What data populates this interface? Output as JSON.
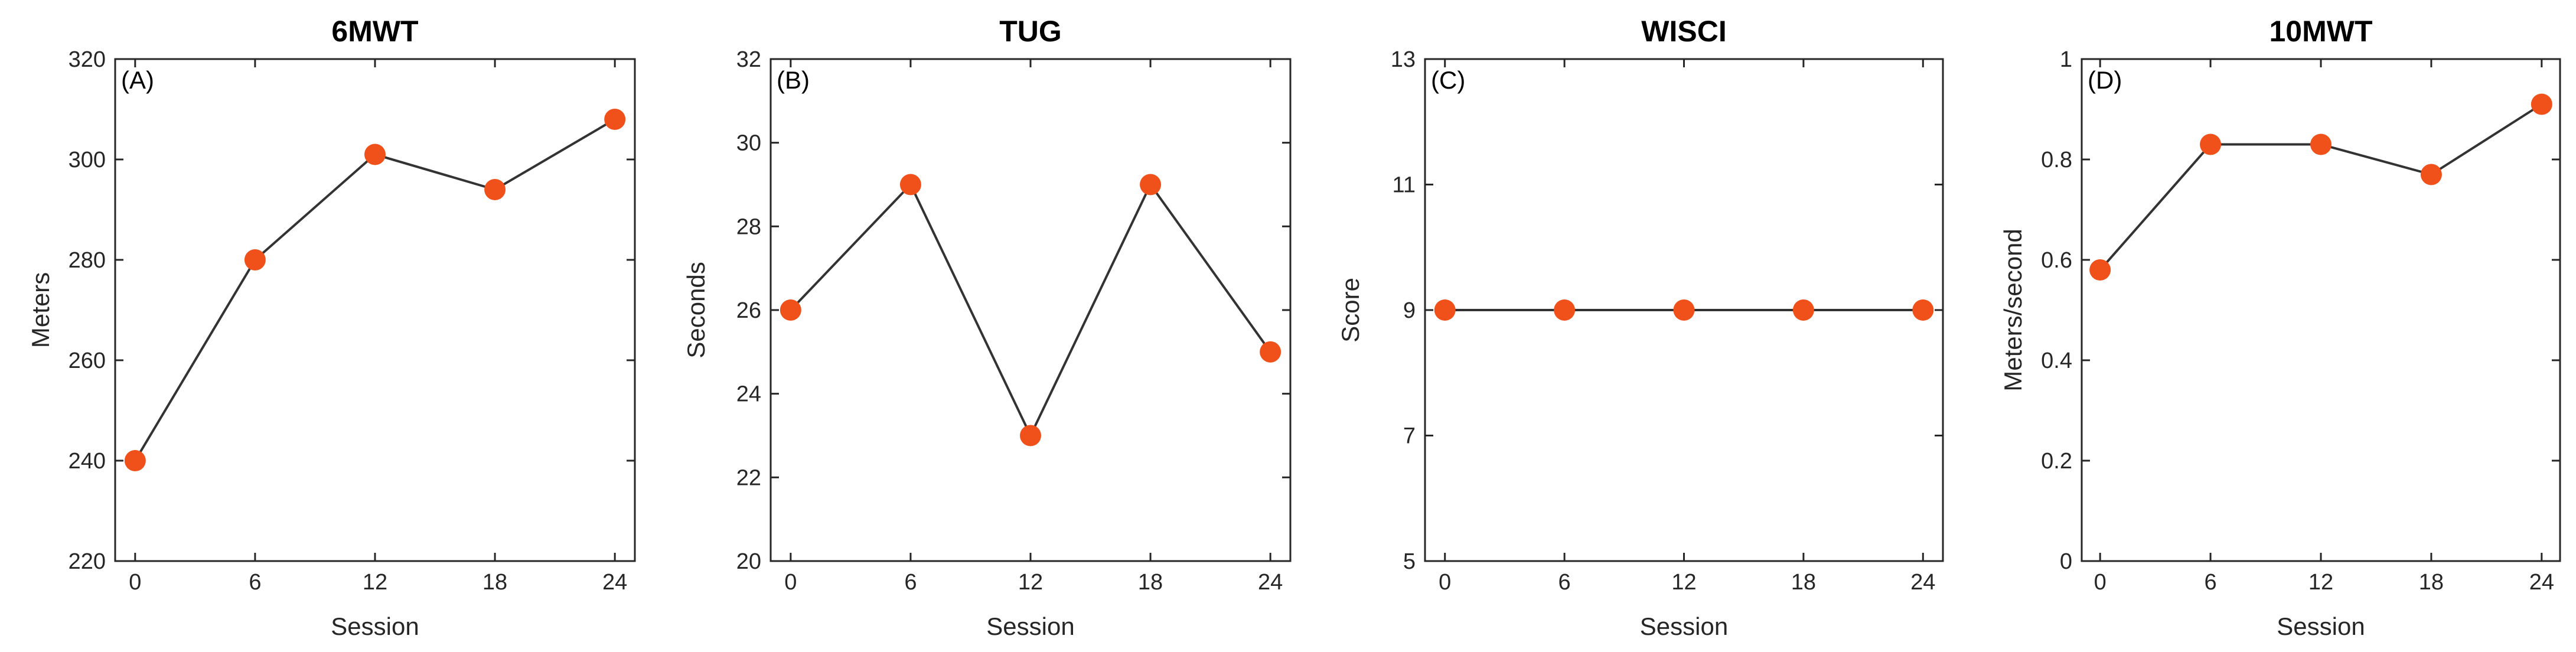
{
  "chart_data": [
    {
      "type": "line",
      "panel_label": "(A)",
      "title": "6MWT",
      "xlabel": "Session",
      "ylabel": "Meters",
      "x": [
        0,
        6,
        12,
        18,
        24
      ],
      "values": [
        240,
        280,
        301,
        294,
        308
      ],
      "xticks": [
        0,
        6,
        12,
        18,
        24
      ],
      "yticks": [
        220,
        240,
        260,
        280,
        300,
        320
      ],
      "xlim": [
        -1,
        25
      ],
      "ylim": [
        220,
        320
      ],
      "marker_color": "#F0501A",
      "line_color": "#333333"
    },
    {
      "type": "line",
      "panel_label": "(B)",
      "title": "TUG",
      "xlabel": "Session",
      "ylabel": "Seconds",
      "x": [
        0,
        6,
        12,
        18,
        24
      ],
      "values": [
        26,
        29,
        23,
        29,
        25
      ],
      "xticks": [
        0,
        6,
        12,
        18,
        24
      ],
      "yticks": [
        20,
        22,
        24,
        26,
        28,
        30,
        32
      ],
      "xlim": [
        -1,
        25
      ],
      "ylim": [
        20,
        32
      ],
      "marker_color": "#F0501A",
      "line_color": "#333333"
    },
    {
      "type": "line",
      "panel_label": "(C)",
      "title": "WISCI",
      "xlabel": "Session",
      "ylabel": "Score",
      "x": [
        0,
        6,
        12,
        18,
        24
      ],
      "values": [
        9,
        9,
        9,
        9,
        9
      ],
      "xticks": [
        0,
        6,
        12,
        18,
        24
      ],
      "yticks": [
        5,
        7,
        9,
        11,
        13
      ],
      "xlim": [
        -1,
        25
      ],
      "ylim": [
        5,
        13
      ],
      "marker_color": "#F0501A",
      "line_color": "#333333"
    },
    {
      "type": "line",
      "panel_label": "(D)",
      "title": "10MWT",
      "xlabel": "Session",
      "ylabel": "Meters/second",
      "x": [
        0,
        6,
        12,
        18,
        24
      ],
      "values": [
        0.58,
        0.83,
        0.83,
        0.77,
        0.91
      ],
      "xticks": [
        0,
        6,
        12,
        18,
        24
      ],
      "yticks": [
        0,
        0.2,
        0.4,
        0.6,
        0.8,
        1
      ],
      "xlim": [
        -1,
        25
      ],
      "ylim": [
        0,
        1
      ],
      "marker_color": "#F0501A",
      "line_color": "#333333"
    }
  ]
}
